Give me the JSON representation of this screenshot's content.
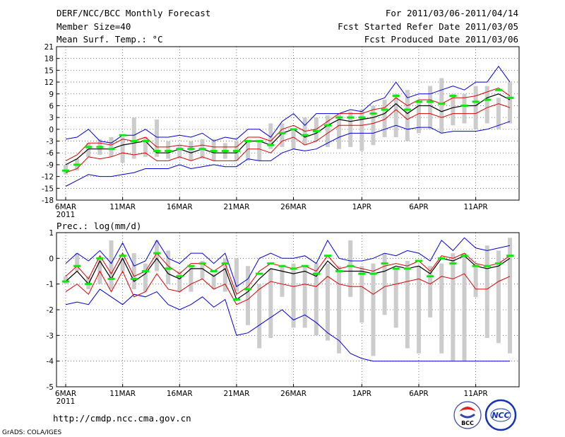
{
  "header": {
    "title": "DERF/NCC/BCC Monthly Forecast",
    "member_size": "Member Size=40",
    "variable": "Mean Surf. Temp.: °C",
    "for_range": "For 2011/03/06-2011/04/14",
    "fcst_started": "Fcst Started Refer Date 2011/03/05",
    "fcst_produced": "Fcst Produced Date 2011/03/06"
  },
  "footer": {
    "url": "http://cmdp.ncc.cma.gov.cn",
    "grads": "GrADS: COLA/IGES",
    "logo_bcc": "BCC",
    "logo_ncc": "NCC"
  },
  "colors": {
    "bar": "#cccccc",
    "mean": "#00ee00",
    "median": "#000000",
    "inner": "#dd0000",
    "outer": "#0000dd",
    "grid": "#555555"
  },
  "chart_data": [
    {
      "type": "box-ensemble",
      "title": "Mean Surf. Temp.: °C",
      "ylim": [
        -18,
        21
      ],
      "yticks": [
        -18,
        -15,
        -12,
        -9,
        -6,
        -3,
        0,
        3,
        6,
        9,
        12,
        15,
        18,
        21
      ],
      "xticks": [
        {
          "day": 0,
          "label": "6MAR",
          "sub": "2011"
        },
        {
          "day": 5,
          "label": "11MAR"
        },
        {
          "day": 10,
          "label": "16MAR"
        },
        {
          "day": 15,
          "label": "21MAR"
        },
        {
          "day": 20,
          "label": "26MAR"
        },
        {
          "day": 26,
          "label": "1APR"
        },
        {
          "day": 31,
          "label": "6APR"
        },
        {
          "day": 36,
          "label": "11APR"
        }
      ],
      "days": 40,
      "series": {
        "bar_low": [
          -11.5,
          -10.5,
          -7,
          -6.5,
          -7,
          -8.5,
          -7.5,
          -7,
          -7,
          -7.5,
          -7.5,
          -8,
          -7.5,
          -8,
          -7.5,
          -8,
          -8,
          -8,
          -5,
          -4.5,
          -5,
          -4,
          -3,
          -4.5,
          -5,
          -4.5,
          -5.5,
          -4,
          -2,
          -2,
          -3,
          -1,
          0,
          -1,
          1,
          1.5,
          0,
          1.5,
          0,
          1.5
        ],
        "bar_high": [
          -9,
          -7.5,
          -3.5,
          -2.5,
          -2,
          -2,
          3,
          -2,
          2.5,
          -3,
          -4,
          -3,
          -2.5,
          -2.5,
          -3.5,
          -3,
          -3,
          -3,
          1.5,
          1.5,
          0,
          3,
          3,
          3.5,
          4,
          4.5,
          5,
          6,
          7.5,
          9,
          10,
          7,
          11,
          13,
          9,
          9,
          11,
          11,
          8,
          12
        ],
        "mean": [
          -10.5,
          -9,
          -4.5,
          -4.5,
          -5,
          -1.5,
          -3,
          -3,
          -5.5,
          -5.5,
          -5,
          -5,
          -5,
          -5.5,
          -5.5,
          -5.5,
          -3,
          -3,
          -4,
          -1,
          0,
          -1.5,
          -0.5,
          1,
          3,
          3,
          3,
          4,
          5,
          8.5,
          5,
          7,
          7,
          6.5,
          8.5,
          6,
          7,
          7.5,
          10,
          8
        ],
        "median": [
          -9,
          -7.5,
          -5,
          -5,
          -5,
          -4,
          -3.5,
          -3,
          -6,
          -6,
          -5,
          -6,
          -5,
          -6,
          -6,
          -6,
          -3,
          -3,
          -4,
          -1,
          0,
          -2,
          -1,
          1,
          2.5,
          2,
          2.5,
          3,
          4,
          6.5,
          4,
          6,
          6,
          4.5,
          5.5,
          6,
          6,
          8,
          9,
          7.5
        ],
        "inner_high": [
          -8,
          -6.5,
          -3.5,
          -3.5,
          -4,
          -2.5,
          -3,
          -2,
          -4.5,
          -4.5,
          -4,
          -4.5,
          -4,
          -4.5,
          -4.5,
          -4.5,
          -2,
          -2,
          -3,
          0,
          1,
          -0.5,
          0,
          2,
          4,
          4,
          4,
          5,
          5.5,
          8,
          6,
          7.5,
          7.5,
          6.5,
          8,
          8,
          8.5,
          9.5,
          10.5,
          8.5
        ],
        "inner_low": [
          -11,
          -10,
          -7,
          -7.5,
          -7,
          -6,
          -6.5,
          -6,
          -8,
          -8,
          -7,
          -8,
          -7,
          -8,
          -8,
          -8,
          -5,
          -5,
          -6,
          -3,
          -2,
          -4,
          -3,
          -1,
          1,
          1,
          1,
          1.5,
          2.5,
          5,
          2.5,
          4,
          4,
          3,
          4,
          4,
          4,
          5.5,
          6.5,
          5.5
        ],
        "outer_high": [
          -2.5,
          -2,
          0,
          -3,
          -3.5,
          -1.5,
          -1.5,
          0,
          -2,
          -2,
          -1.5,
          -2,
          -1,
          -3,
          -2,
          -2.5,
          0,
          0,
          -2,
          2,
          4,
          1,
          4,
          4,
          4,
          5,
          4.5,
          7,
          8,
          12,
          8,
          9,
          9,
          10,
          11,
          10,
          12,
          12,
          16,
          12
        ],
        "outer_low": [
          -14.5,
          -13,
          -11.5,
          -12,
          -12,
          -11.5,
          -11,
          -10,
          -10,
          -10,
          -9,
          -10,
          -9.5,
          -9,
          -9.5,
          -9.5,
          -7.5,
          -8,
          -8,
          -6,
          -5,
          -5.5,
          -5,
          -3.5,
          -2,
          -1,
          -1,
          -1,
          0,
          1,
          0,
          0.5,
          0.5,
          -1,
          -0.5,
          -0.5,
          -0.5,
          0,
          1,
          2
        ]
      }
    },
    {
      "type": "box-ensemble",
      "title": "Prec.: log(mm/d)",
      "ylim": [
        -5,
        1
      ],
      "yticks": [
        -5,
        -4,
        -3,
        -2,
        -1,
        0,
        1
      ],
      "xticks": [
        {
          "day": 0,
          "label": "6MAR",
          "sub": "2011"
        },
        {
          "day": 5,
          "label": "11MAR"
        },
        {
          "day": 10,
          "label": "16MAR"
        },
        {
          "day": 15,
          "label": "21MAR"
        },
        {
          "day": 20,
          "label": "26MAR"
        },
        {
          "day": 26,
          "label": "1APR"
        },
        {
          "day": 31,
          "label": "6APR"
        },
        {
          "day": 36,
          "label": "11APR"
        }
      ],
      "days": 40,
      "series": {
        "bar_low": [
          -1,
          -0.5,
          -1.2,
          -1,
          -1.2,
          -0.5,
          -1.2,
          -1.3,
          -0.5,
          -1,
          -1.3,
          -1.3,
          -0.8,
          -1.2,
          -1.3,
          -1.3,
          -2.6,
          -3.5,
          -3.1,
          -1.5,
          -2.7,
          -2.7,
          -3,
          -3.2,
          -3.7,
          -1.5,
          -2.5,
          -3.8,
          -2.2,
          -2.7,
          -3.5,
          -3.7,
          -2.3,
          -3.7,
          -4,
          -4,
          -1.5,
          -3.1,
          -3.3,
          -3.7
        ],
        "bar_high": [
          -0.7,
          0.2,
          -0.7,
          0,
          0.7,
          0,
          0.2,
          -0.2,
          0.7,
          0.3,
          -0.5,
          -0.3,
          -0.1,
          -0.6,
          0,
          0,
          -0.3,
          -1,
          -0.4,
          -0.3,
          -0.2,
          -0.3,
          -0.2,
          -0.2,
          -0.3,
          0.7,
          -0.3,
          -0.2,
          0.2,
          -0.4,
          -0.1,
          -0.3,
          -0.3,
          -0.2,
          0.2,
          0.2,
          -0.2,
          0.5,
          0.3,
          0.8
        ],
        "mean": [
          -0.9,
          -0.3,
          -1,
          0,
          -0.8,
          0.1,
          -0.8,
          -0.5,
          0.2,
          -0.4,
          -0.7,
          -0.3,
          -0.2,
          -0.5,
          -0.2,
          -1.6,
          -1.2,
          -0.6,
          -0.2,
          -0.3,
          -0.4,
          -0.3,
          -0.6,
          0.1,
          -0.5,
          -0.3,
          -0.6,
          -0.6,
          -0.2,
          -0.4,
          -0.4,
          -0.1,
          -0.7,
          0,
          -0.2,
          0.1,
          -0.3,
          -0.3,
          -0.2,
          0.1
        ],
        "median": [
          -0.9,
          -0.5,
          -1,
          -0.1,
          -0.8,
          0,
          -0.9,
          -0.6,
          0,
          -0.6,
          -0.8,
          -0.4,
          -0.4,
          -0.7,
          -0.4,
          -1.6,
          -1.3,
          -0.8,
          -0.4,
          -0.5,
          -0.6,
          -0.5,
          -0.7,
          -0.1,
          -0.5,
          -0.5,
          -0.5,
          -0.6,
          -0.5,
          -0.3,
          -0.4,
          -0.3,
          -0.6,
          0,
          -0.1,
          0.1,
          -0.3,
          -0.4,
          -0.3,
          0
        ],
        "inner_high": [
          -0.7,
          -0.3,
          -0.8,
          0.1,
          -0.6,
          0.2,
          -0.7,
          -0.5,
          0.2,
          -0.3,
          -0.6,
          -0.2,
          -0.2,
          -0.5,
          -0.2,
          -1.4,
          -1.1,
          -0.5,
          -0.2,
          -0.3,
          -0.4,
          -0.3,
          -0.5,
          0.1,
          -0.4,
          -0.3,
          -0.4,
          -0.5,
          -0.3,
          -0.2,
          -0.3,
          -0.1,
          -0.5,
          0.1,
          0,
          0.2,
          -0.2,
          -0.3,
          -0.2,
          0.1
        ],
        "inner_low": [
          -1.3,
          -1,
          -1.4,
          -0.5,
          -1.3,
          -0.5,
          -1.5,
          -1.3,
          -0.6,
          -1.2,
          -1.3,
          -1,
          -0.8,
          -1.2,
          -1,
          -1.8,
          -1.6,
          -1.2,
          -0.9,
          -1,
          -1.1,
          -1,
          -1.1,
          -0.7,
          -1,
          -1.1,
          -1.1,
          -1.4,
          -1.1,
          -1,
          -0.9,
          -0.8,
          -1,
          -0.7,
          -0.8,
          -0.6,
          -1.2,
          -1.2,
          -0.9,
          -0.7
        ],
        "outer_high": [
          -0.2,
          0.2,
          -0.1,
          0.3,
          -0.2,
          0.6,
          -0.3,
          -0.1,
          0.7,
          0,
          -0.2,
          0.2,
          0.2,
          -0.2,
          0.2,
          -1.1,
          -0.8,
          0,
          0.2,
          0,
          0,
          0.1,
          -0.2,
          0.7,
          0,
          -0.1,
          -0.1,
          0,
          0.2,
          0.1,
          0.3,
          0.2,
          -0.1,
          0.7,
          0.3,
          0.8,
          0.4,
          0.3,
          0.4,
          0.5
        ],
        "outer_low": [
          -1.8,
          -1.7,
          -1.8,
          -1.2,
          -1.5,
          -1.8,
          -1.4,
          -1.5,
          -1.3,
          -1.8,
          -2,
          -1.8,
          -1.5,
          -1.9,
          -1.6,
          -3,
          -2.9,
          -2.6,
          -2.3,
          -2,
          -2.4,
          -2.2,
          -2.5,
          -2.9,
          -3.2,
          -3.7,
          -3.9,
          -4,
          -4,
          -4,
          -4,
          -4,
          -4,
          -4,
          -4,
          -4,
          -4,
          -4,
          -4,
          -4
        ]
      }
    }
  ]
}
